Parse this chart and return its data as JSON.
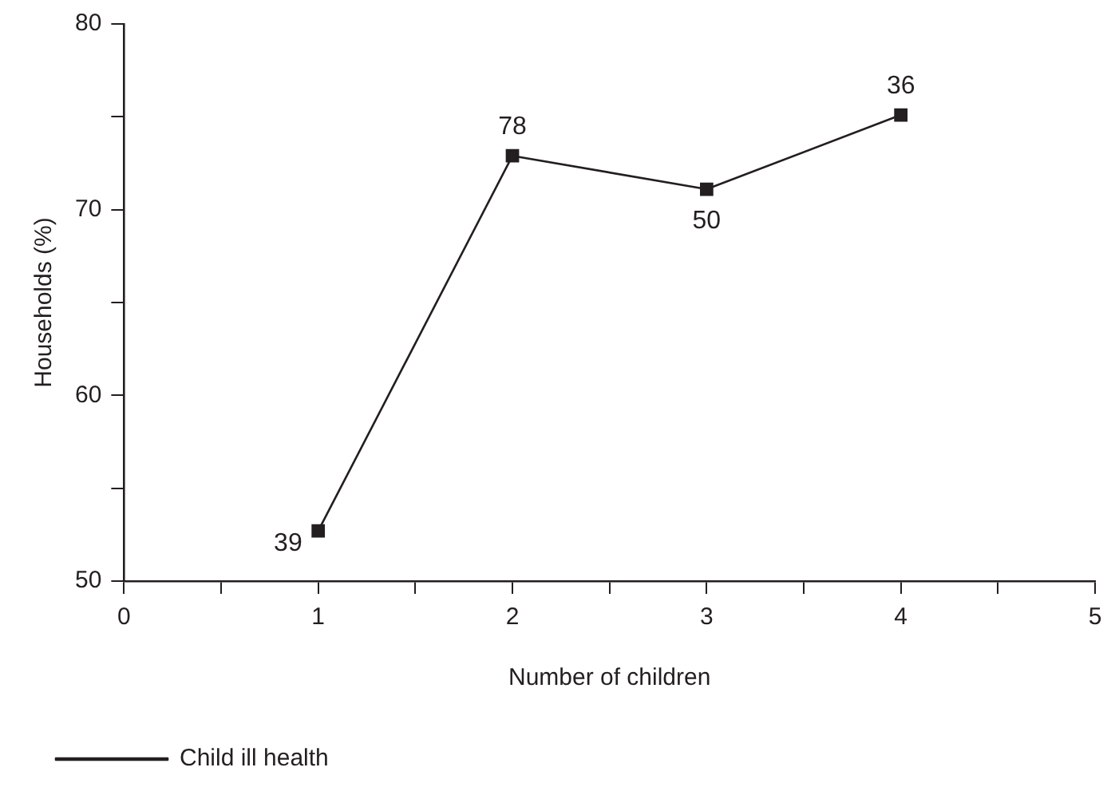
{
  "chart_data": {
    "type": "line",
    "xlabel": "Number of children",
    "ylabel": "Households (%)",
    "x": [
      1,
      2,
      3,
      4
    ],
    "series": [
      {
        "name": "Child ill health",
        "color": "#231f20",
        "values": [
          52.7,
          72.9,
          71.1,
          75.1
        ]
      }
    ],
    "annotations": [
      {
        "text": "39",
        "x": 1,
        "y": 52.7
      },
      {
        "text": "78",
        "x": 2,
        "y": 72.9
      },
      {
        "text": "50",
        "x": 3,
        "y": 71.1
      },
      {
        "text": "36",
        "x": 4,
        "y": 75.1
      }
    ],
    "xlim": [
      0,
      5
    ],
    "xticks": [
      0,
      {
        "value": 0.5,
        "label": null
      },
      1,
      {
        "value": 1.5,
        "label": null
      },
      2,
      {
        "value": 2.5,
        "label": null
      },
      3,
      {
        "value": 3.5,
        "label": null
      },
      4,
      {
        "value": 4.5,
        "label": null
      },
      5
    ],
    "ylim": [
      50,
      80
    ],
    "yticks": [
      50,
      {
        "value": 55,
        "label": null
      },
      60,
      {
        "value": 65,
        "label": null
      },
      70,
      {
        "value": 75,
        "label": null
      },
      80
    ],
    "grid": false,
    "legend": "bottom left",
    "marker": "square",
    "line_style": "solid"
  }
}
